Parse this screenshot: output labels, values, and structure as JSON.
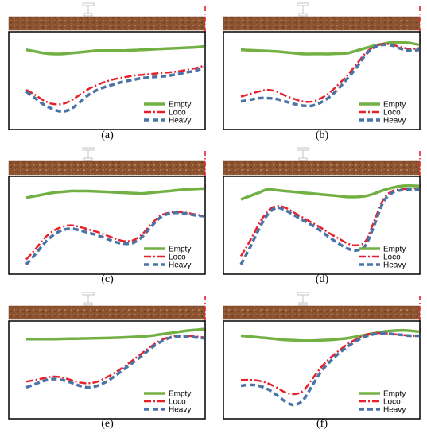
{
  "figure": {
    "legend_labels": [
      "Empty",
      "Loco",
      "Heavy"
    ],
    "colors": {
      "Empty": "#72b043",
      "Loco": "#e8202a",
      "Heavy": "#4a74a8",
      "soil": "#8a5230",
      "marker": "#e8202a"
    }
  },
  "chart_data": [
    {
      "type": "line",
      "caption": "(a)",
      "xlim": [
        0,
        1
      ],
      "ylim": [
        0,
        1
      ],
      "series": [
        {
          "name": "Empty",
          "x": [
            0,
            0.05,
            0.1,
            0.15,
            0.2,
            0.25,
            0.3,
            0.35,
            0.4,
            0.45,
            0.5,
            0.55,
            0.6,
            0.65,
            0.7,
            0.75,
            0.8,
            0.85,
            0.9,
            0.95,
            1
          ],
          "values": [
            0.86,
            0.84,
            0.82,
            0.81,
            0.81,
            0.82,
            0.83,
            0.84,
            0.85,
            0.85,
            0.85,
            0.85,
            0.855,
            0.86,
            0.865,
            0.87,
            0.875,
            0.88,
            0.885,
            0.89,
            0.9
          ]
        },
        {
          "name": "Loco",
          "x": [
            0,
            0.05,
            0.1,
            0.15,
            0.2,
            0.25,
            0.3,
            0.35,
            0.4,
            0.45,
            0.5,
            0.55,
            0.6,
            0.65,
            0.7,
            0.75,
            0.8,
            0.85,
            0.9,
            0.95,
            1
          ],
          "values": [
            0.38,
            0.32,
            0.25,
            0.21,
            0.21,
            0.25,
            0.32,
            0.39,
            0.44,
            0.48,
            0.51,
            0.53,
            0.55,
            0.56,
            0.57,
            0.58,
            0.59,
            0.6,
            0.62,
            0.64,
            0.67
          ]
        },
        {
          "name": "Heavy",
          "x": [
            0,
            0.05,
            0.1,
            0.15,
            0.2,
            0.25,
            0.3,
            0.35,
            0.4,
            0.45,
            0.5,
            0.55,
            0.6,
            0.65,
            0.7,
            0.75,
            0.8,
            0.85,
            0.9,
            0.95,
            1
          ],
          "values": [
            0.36,
            0.28,
            0.2,
            0.15,
            0.12,
            0.15,
            0.23,
            0.32,
            0.38,
            0.42,
            0.45,
            0.48,
            0.5,
            0.52,
            0.53,
            0.54,
            0.55,
            0.57,
            0.59,
            0.61,
            0.65
          ]
        }
      ]
    },
    {
      "type": "line",
      "caption": "(b)",
      "xlim": [
        0,
        1
      ],
      "ylim": [
        0,
        1
      ],
      "series": [
        {
          "name": "Empty",
          "x": [
            0,
            0.05,
            0.1,
            0.15,
            0.2,
            0.25,
            0.3,
            0.35,
            0.4,
            0.45,
            0.5,
            0.55,
            0.6,
            0.65,
            0.7,
            0.75,
            0.8,
            0.85,
            0.9,
            0.95,
            1
          ],
          "values": [
            0.86,
            0.855,
            0.85,
            0.845,
            0.84,
            0.83,
            0.82,
            0.81,
            0.81,
            0.81,
            0.81,
            0.815,
            0.82,
            0.85,
            0.88,
            0.91,
            0.93,
            0.95,
            0.95,
            0.94,
            0.92
          ]
        },
        {
          "name": "Loco",
          "x": [
            0,
            0.05,
            0.1,
            0.15,
            0.2,
            0.25,
            0.3,
            0.35,
            0.4,
            0.45,
            0.5,
            0.55,
            0.6,
            0.65,
            0.7,
            0.75,
            0.8,
            0.85,
            0.9,
            0.95,
            1
          ],
          "values": [
            0.3,
            0.33,
            0.36,
            0.38,
            0.36,
            0.31,
            0.27,
            0.24,
            0.24,
            0.28,
            0.35,
            0.45,
            0.56,
            0.69,
            0.82,
            0.9,
            0.93,
            0.92,
            0.89,
            0.87,
            0.88
          ]
        },
        {
          "name": "Heavy",
          "x": [
            0,
            0.05,
            0.1,
            0.15,
            0.2,
            0.25,
            0.3,
            0.35,
            0.4,
            0.45,
            0.5,
            0.55,
            0.6,
            0.65,
            0.7,
            0.75,
            0.8,
            0.85,
            0.9,
            0.95,
            1
          ],
          "values": [
            0.24,
            0.26,
            0.28,
            0.28,
            0.27,
            0.24,
            0.21,
            0.19,
            0.19,
            0.23,
            0.3,
            0.4,
            0.52,
            0.65,
            0.8,
            0.89,
            0.92,
            0.91,
            0.87,
            0.85,
            0.86
          ]
        }
      ]
    },
    {
      "type": "line",
      "caption": "(c)",
      "xlim": [
        0,
        1
      ],
      "ylim": [
        0,
        1
      ],
      "series": [
        {
          "name": "Empty",
          "x": [
            0,
            0.05,
            0.1,
            0.15,
            0.2,
            0.25,
            0.3,
            0.35,
            0.4,
            0.45,
            0.5,
            0.55,
            0.6,
            0.65,
            0.7,
            0.75,
            0.8,
            0.85,
            0.9,
            0.95,
            1
          ],
          "values": [
            0.82,
            0.84,
            0.86,
            0.88,
            0.89,
            0.9,
            0.9,
            0.9,
            0.895,
            0.89,
            0.885,
            0.88,
            0.875,
            0.87,
            0.88,
            0.89,
            0.9,
            0.91,
            0.92,
            0.925,
            0.93
          ]
        },
        {
          "name": "Loco",
          "x": [
            0,
            0.05,
            0.1,
            0.15,
            0.2,
            0.25,
            0.3,
            0.35,
            0.4,
            0.45,
            0.5,
            0.55,
            0.6,
            0.65,
            0.7,
            0.75,
            0.8,
            0.85,
            0.9,
            0.95,
            1
          ],
          "values": [
            0.08,
            0.2,
            0.33,
            0.42,
            0.47,
            0.49,
            0.47,
            0.44,
            0.41,
            0.37,
            0.33,
            0.3,
            0.31,
            0.38,
            0.5,
            0.6,
            0.64,
            0.65,
            0.64,
            0.62,
            0.6
          ]
        },
        {
          "name": "Heavy",
          "x": [
            0,
            0.05,
            0.1,
            0.15,
            0.2,
            0.25,
            0.3,
            0.35,
            0.4,
            0.45,
            0.5,
            0.55,
            0.6,
            0.65,
            0.7,
            0.75,
            0.8,
            0.85,
            0.9,
            0.95,
            1
          ],
          "values": [
            0.02,
            0.14,
            0.27,
            0.37,
            0.43,
            0.45,
            0.43,
            0.4,
            0.37,
            0.33,
            0.29,
            0.27,
            0.28,
            0.35,
            0.47,
            0.58,
            0.63,
            0.64,
            0.63,
            0.61,
            0.6
          ]
        }
      ]
    },
    {
      "type": "line",
      "caption": "(d)",
      "xlim": [
        0,
        1
      ],
      "ylim": [
        0,
        1
      ],
      "series": [
        {
          "name": "Empty",
          "x": [
            0,
            0.05,
            0.1,
            0.15,
            0.2,
            0.25,
            0.3,
            0.35,
            0.4,
            0.45,
            0.5,
            0.55,
            0.6,
            0.65,
            0.7,
            0.75,
            0.8,
            0.85,
            0.9,
            0.95,
            1
          ],
          "values": [
            0.8,
            0.84,
            0.88,
            0.92,
            0.91,
            0.9,
            0.89,
            0.88,
            0.87,
            0.86,
            0.85,
            0.84,
            0.83,
            0.83,
            0.84,
            0.87,
            0.91,
            0.94,
            0.96,
            0.965,
            0.96
          ]
        },
        {
          "name": "Loco",
          "x": [
            0,
            0.05,
            0.1,
            0.15,
            0.2,
            0.25,
            0.3,
            0.35,
            0.4,
            0.45,
            0.5,
            0.55,
            0.6,
            0.65,
            0.7,
            0.75,
            0.8,
            0.85,
            0.9,
            0.95,
            1
          ],
          "values": [
            0.12,
            0.3,
            0.5,
            0.66,
            0.72,
            0.7,
            0.64,
            0.58,
            0.52,
            0.46,
            0.39,
            0.33,
            0.27,
            0.25,
            0.3,
            0.55,
            0.8,
            0.9,
            0.92,
            0.93,
            0.93
          ]
        },
        {
          "name": "Heavy",
          "x": [
            0,
            0.05,
            0.1,
            0.15,
            0.2,
            0.25,
            0.3,
            0.35,
            0.4,
            0.45,
            0.5,
            0.55,
            0.6,
            0.65,
            0.7,
            0.75,
            0.8,
            0.85,
            0.9,
            0.95,
            1
          ],
          "values": [
            0.02,
            0.22,
            0.44,
            0.62,
            0.7,
            0.67,
            0.61,
            0.55,
            0.49,
            0.42,
            0.34,
            0.27,
            0.21,
            0.19,
            0.25,
            0.5,
            0.77,
            0.88,
            0.91,
            0.92,
            0.92
          ]
        }
      ]
    },
    {
      "type": "line",
      "caption": "(e)",
      "xlim": [
        0,
        1
      ],
      "ylim": [
        0,
        1
      ],
      "series": [
        {
          "name": "Empty",
          "x": [
            0,
            0.05,
            0.1,
            0.15,
            0.2,
            0.25,
            0.3,
            0.35,
            0.4,
            0.45,
            0.5,
            0.55,
            0.6,
            0.65,
            0.7,
            0.75,
            0.8,
            0.85,
            0.9,
            0.95,
            1
          ],
          "values": [
            0.86,
            0.86,
            0.86,
            0.86,
            0.862,
            0.864,
            0.866,
            0.868,
            0.87,
            0.872,
            0.876,
            0.88,
            0.885,
            0.89,
            0.9,
            0.915,
            0.93,
            0.945,
            0.96,
            0.97,
            0.98
          ]
        },
        {
          "name": "Loco",
          "x": [
            0,
            0.05,
            0.1,
            0.15,
            0.2,
            0.25,
            0.3,
            0.35,
            0.4,
            0.45,
            0.5,
            0.55,
            0.6,
            0.65,
            0.7,
            0.75,
            0.8,
            0.85,
            0.9,
            0.95,
            1
          ],
          "values": [
            0.35,
            0.37,
            0.39,
            0.41,
            0.4,
            0.37,
            0.34,
            0.33,
            0.35,
            0.4,
            0.46,
            0.53,
            0.61,
            0.69,
            0.77,
            0.84,
            0.88,
            0.9,
            0.9,
            0.89,
            0.88
          ]
        },
        {
          "name": "Heavy",
          "x": [
            0,
            0.05,
            0.1,
            0.15,
            0.2,
            0.25,
            0.3,
            0.35,
            0.4,
            0.45,
            0.5,
            0.55,
            0.6,
            0.65,
            0.7,
            0.75,
            0.8,
            0.85,
            0.9,
            0.95,
            1
          ],
          "values": [
            0.28,
            0.32,
            0.36,
            0.38,
            0.37,
            0.34,
            0.3,
            0.28,
            0.3,
            0.35,
            0.42,
            0.5,
            0.58,
            0.66,
            0.75,
            0.82,
            0.87,
            0.89,
            0.89,
            0.88,
            0.87
          ]
        }
      ]
    },
    {
      "type": "line",
      "caption": "(f)",
      "xlim": [
        0,
        1
      ],
      "ylim": [
        0,
        1
      ],
      "series": [
        {
          "name": "Empty",
          "x": [
            0,
            0.05,
            0.1,
            0.15,
            0.2,
            0.25,
            0.3,
            0.35,
            0.4,
            0.45,
            0.5,
            0.55,
            0.6,
            0.65,
            0.7,
            0.75,
            0.8,
            0.85,
            0.9,
            0.95,
            1
          ],
          "values": [
            0.9,
            0.89,
            0.88,
            0.87,
            0.86,
            0.85,
            0.845,
            0.84,
            0.84,
            0.845,
            0.85,
            0.86,
            0.87,
            0.89,
            0.91,
            0.93,
            0.95,
            0.96,
            0.965,
            0.96,
            0.95
          ]
        },
        {
          "name": "Loco",
          "x": [
            0,
            0.05,
            0.1,
            0.15,
            0.2,
            0.25,
            0.3,
            0.35,
            0.4,
            0.45,
            0.5,
            0.55,
            0.6,
            0.65,
            0.7,
            0.75,
            0.8,
            0.85,
            0.9,
            0.95,
            1
          ],
          "values": [
            0.37,
            0.37,
            0.36,
            0.33,
            0.28,
            0.22,
            0.2,
            0.24,
            0.38,
            0.52,
            0.63,
            0.72,
            0.8,
            0.86,
            0.91,
            0.93,
            0.93,
            0.92,
            0.91,
            0.9,
            0.9
          ]
        },
        {
          "name": "Heavy",
          "x": [
            0,
            0.05,
            0.1,
            0.15,
            0.2,
            0.25,
            0.3,
            0.35,
            0.4,
            0.45,
            0.5,
            0.55,
            0.6,
            0.65,
            0.7,
            0.75,
            0.8,
            0.85,
            0.9,
            0.95,
            1
          ],
          "values": [
            0.3,
            0.31,
            0.3,
            0.26,
            0.19,
            0.11,
            0.07,
            0.13,
            0.3,
            0.47,
            0.59,
            0.69,
            0.77,
            0.84,
            0.89,
            0.92,
            0.93,
            0.92,
            0.91,
            0.9,
            0.9
          ]
        }
      ]
    }
  ]
}
